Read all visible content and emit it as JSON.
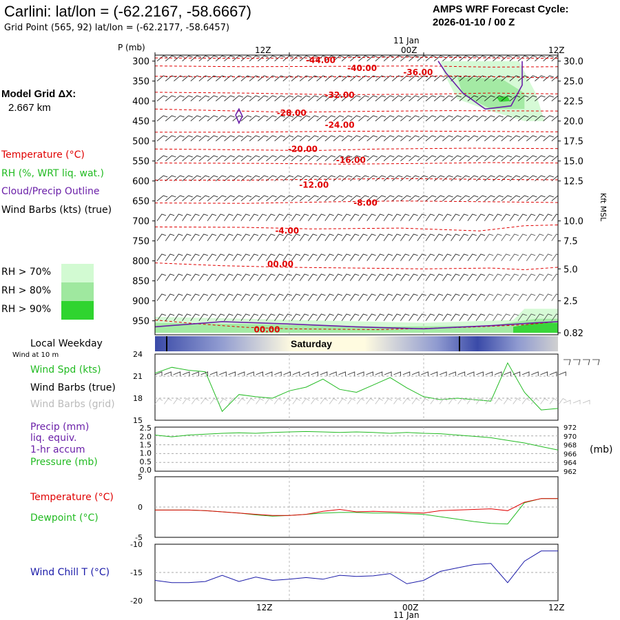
{
  "header": {
    "title": "Carlini: lat/lon = (-62.2167, -58.6667)",
    "grid_point": "Grid Point (565, 92) lat/lon = (-62.2177, -58.6457)",
    "cycle_line1": "AMPS WRF Forecast Cycle:",
    "cycle_line2": "2026-01-10 / 00  Z",
    "model_grid_label": "Model Grid ΔX:",
    "model_grid_value": "2.667 km"
  },
  "legend": {
    "temperature": "Temperature (°C)",
    "rh": "RH (%, WRT liq. wat.)",
    "cloud": "Cloud/Precip Outline",
    "wind": "Wind Barbs (kts) (true)",
    "rh70": "RH > 70%",
    "rh80": "RH > 80%",
    "rh90": "RH > 90%",
    "colors": {
      "rh70": "#d2fad2",
      "rh80": "#9fe89f",
      "rh90": "#2fd42f",
      "temperature": "#e00000",
      "cloud": "#6a1fa8",
      "rh_text": "#22bb22"
    }
  },
  "time_axis": {
    "top_day_label": "11 Jan",
    "top_ticks": [
      "12Z",
      "00Z",
      "12Z"
    ],
    "bottom_ticks": [
      "12Z",
      "00Z",
      "12Z"
    ],
    "bottom_day_label": "11 Jan"
  },
  "weekday_bar": {
    "label": "Local Weekday",
    "day": "Saturday"
  },
  "panel_labels": {
    "wind_at": "Wind at 10 m",
    "wind_spd": "Wind Spd (kts)",
    "wind_barbs_true": "Wind Barbs (true)",
    "wind_barbs_grid": "Wind Barbs (grid)",
    "precip1": "Precip (mm)",
    "precip2": "liq. equiv.",
    "precip3": "1-hr accum",
    "pressure": "Pressure (mb)",
    "pressure_unit": "(mb)",
    "temperature": "Temperature (°C)",
    "dewpoint": "Dewpoint (°C)",
    "windchill": "Wind Chill T (°C)"
  },
  "chart_data": [
    {
      "type": "heatmap",
      "name": "time-height cross section",
      "x_hours": [
        0,
        3,
        6,
        9,
        12,
        15,
        18,
        21,
        24,
        27,
        30,
        33,
        36
      ],
      "y_pressure_mb": [
        950,
        900,
        850,
        800,
        750,
        700,
        650,
        600,
        550,
        500,
        450,
        400,
        350,
        300
      ],
      "y_left_label": "P (mb)",
      "y_right_label": "Kft MSL",
      "y_right_ticks": [
        {
          "p": 300,
          "label": "30.0"
        },
        {
          "p": 350,
          "label": "25.0"
        },
        {
          "p": 400,
          "label": "22.5"
        },
        {
          "p": 450,
          "label": "20.0"
        },
        {
          "p": 500,
          "label": "17.5"
        },
        {
          "p": 550,
          "label": "15.0"
        },
        {
          "p": 600,
          "label": "12.5"
        },
        {
          "p": 700,
          "label": "10.0"
        },
        {
          "p": 750,
          "label": "7.5"
        },
        {
          "p": 820,
          "label": "5.0"
        },
        {
          "p": 900,
          "label": "2.5"
        },
        {
          "p": 980,
          "label": "0.82"
        }
      ],
      "temperature_contours": [
        {
          "value": -44,
          "label": "-44.00",
          "points": [
            [
              0,
              292
            ],
            [
              8,
              293
            ],
            [
              14,
              292
            ],
            [
              22,
              290
            ],
            [
              30,
              292
            ],
            [
              36,
              293
            ]
          ],
          "label_at": [
            14.8,
            298
          ]
        },
        {
          "value": -40,
          "label": "-40.00",
          "points": [
            [
              0,
              312
            ],
            [
              8,
              314
            ],
            [
              17,
              313
            ],
            [
              24,
              312
            ],
            [
              30,
              315
            ],
            [
              36,
              314
            ]
          ],
          "label_at": [
            18.5,
            318
          ]
        },
        {
          "value": -36,
          "label": "-36.00",
          "points": [
            [
              0,
              338
            ],
            [
              10,
              340
            ],
            [
              20,
              339
            ],
            [
              26,
              337
            ],
            [
              32,
              340
            ],
            [
              36,
              342
            ]
          ],
          "label_at": [
            23.5,
            328
          ]
        },
        {
          "value": -32,
          "label": "-32.00",
          "points": [
            [
              0,
              378
            ],
            [
              8,
              380
            ],
            [
              16,
              384
            ],
            [
              24,
              383
            ],
            [
              30,
              380
            ],
            [
              36,
              382
            ]
          ],
          "label_at": [
            16.5,
            385
          ]
        },
        {
          "value": -28,
          "label": "-28.00",
          "points": [
            [
              0,
              420
            ],
            [
              6,
              424
            ],
            [
              12,
              428
            ],
            [
              18,
              426
            ],
            [
              26,
              424
            ],
            [
              36,
              425
            ]
          ],
          "label_at": [
            12.2,
            430
          ]
        },
        {
          "value": -24,
          "label": "-24.00",
          "points": [
            [
              0,
              478
            ],
            [
              8,
              478
            ],
            [
              15,
              476
            ],
            [
              22,
              475
            ],
            [
              30,
              476
            ],
            [
              36,
              477
            ]
          ],
          "label_at": [
            16.5,
            460
          ]
        },
        {
          "value": -20,
          "label": "-20.00",
          "points": [
            [
              0,
              520
            ],
            [
              8,
              522
            ],
            [
              14,
              524
            ],
            [
              20,
              520
            ],
            [
              28,
              518
            ],
            [
              36,
              519
            ]
          ],
          "label_at": [
            13.2,
            520
          ]
        },
        {
          "value": -16,
          "label": "-16.00",
          "points": [
            [
              0,
              555
            ],
            [
              10,
              556
            ],
            [
              17,
              558
            ],
            [
              24,
              556
            ],
            [
              30,
              554
            ],
            [
              36,
              555
            ]
          ],
          "label_at": [
            17.5,
            548
          ]
        },
        {
          "value": -12,
          "label": "-12.00",
          "points": [
            [
              0,
              598
            ],
            [
              8,
              598
            ],
            [
              14,
              596
            ],
            [
              22,
              594
            ],
            [
              30,
              596
            ],
            [
              36,
              597
            ]
          ],
          "label_at": [
            14.2,
            610
          ]
        },
        {
          "value": -8,
          "label": "-8.00",
          "points": [
            [
              0,
              655
            ],
            [
              8,
              656
            ],
            [
              16,
              652
            ],
            [
              22,
              650
            ],
            [
              30,
              652
            ],
            [
              36,
              654
            ]
          ],
          "label_at": [
            18.8,
            655
          ]
        },
        {
          "value": -4,
          "label": "-4.00",
          "points": [
            [
              0,
              715
            ],
            [
              8,
              716
            ],
            [
              14,
              720
            ],
            [
              22,
              718
            ],
            [
              29,
              725
            ],
            [
              33,
              712
            ],
            [
              36,
              710
            ]
          ],
          "label_at": [
            11.8,
            725
          ]
        },
        {
          "value": 0,
          "label": "00.00",
          "points": [
            [
              0,
              805
            ],
            [
              6,
              812
            ],
            [
              12,
              816
            ],
            [
              18,
              818
            ],
            [
              24,
              820
            ],
            [
              30,
              818
            ],
            [
              33,
              822
            ],
            [
              36,
              816
            ]
          ],
          "label_at": [
            11.2,
            808
          ]
        },
        {
          "value": 0,
          "label": "00.00",
          "points": [
            [
              0,
              948
            ],
            [
              4,
              958
            ],
            [
              8,
              966
            ],
            [
              12,
              970
            ],
            [
              20,
              972
            ],
            [
              28,
              966
            ],
            [
              33,
              960
            ],
            [
              36,
              952
            ]
          ],
          "label_at": [
            10.0,
            972
          ]
        }
      ],
      "cloud_outlines": [
        {
          "points": [
            [
              7.2,
              435
            ],
            [
              7.5,
              420
            ],
            [
              7.8,
              438
            ],
            [
              7.5,
              455
            ],
            [
              7.2,
              435
            ]
          ]
        },
        {
          "points": [
            [
              25.3,
              300
            ],
            [
              26,
              330
            ],
            [
              27.5,
              380
            ],
            [
              29.5,
              420
            ],
            [
              31.8,
              412
            ],
            [
              32.8,
              360
            ],
            [
              32.8,
              300
            ]
          ]
        },
        {
          "points": [
            [
              0,
              965
            ],
            [
              6,
              952
            ],
            [
              12,
              958
            ],
            [
              18,
              965
            ],
            [
              24,
              970
            ],
            [
              30,
              962
            ],
            [
              34,
              955
            ],
            [
              36,
              952
            ]
          ]
        }
      ],
      "rh_regions": [
        {
          "level": 70,
          "points": [
            [
              25.5,
              300
            ],
            [
              32.5,
              300
            ],
            [
              34,
              380
            ],
            [
              34.8,
              450
            ],
            [
              33,
              450
            ],
            [
              30,
              425
            ],
            [
              27,
              395
            ],
            [
              25.8,
              330
            ]
          ]
        },
        {
          "level": 80,
          "points": [
            [
              27,
              340
            ],
            [
              31,
              345
            ],
            [
              33,
              380
            ],
            [
              33,
              420
            ],
            [
              30,
              420
            ],
            [
              27.5,
              385
            ]
          ]
        },
        {
          "level": 90,
          "points": [
            [
              30.5,
              390
            ],
            [
              31.5,
              388
            ],
            [
              31.7,
              400
            ],
            [
              30.8,
              402
            ]
          ]
        },
        {
          "level": 70,
          "points": [
            [
              0,
              940
            ],
            [
              8,
              945
            ],
            [
              16,
              950
            ],
            [
              24,
              955
            ],
            [
              32,
              948
            ],
            [
              33,
              920
            ],
            [
              36,
              920
            ],
            [
              36,
              980
            ],
            [
              0,
              980
            ]
          ]
        },
        {
          "level": 80,
          "points": [
            [
              0,
              955
            ],
            [
              8,
              958
            ],
            [
              20,
              965
            ],
            [
              30,
              962
            ],
            [
              34,
              945
            ],
            [
              36,
              945
            ],
            [
              36,
              980
            ],
            [
              0,
              980
            ]
          ]
        },
        {
          "level": 90,
          "points": [
            [
              32,
              965
            ],
            [
              34,
              955
            ],
            [
              36,
              955
            ],
            [
              36,
              980
            ],
            [
              32,
              980
            ]
          ]
        }
      ]
    },
    {
      "type": "line",
      "name": "10 m wind speed",
      "ylabel": "Wind Spd (kts)",
      "ylim": [
        15,
        24
      ],
      "yticks": [
        15,
        18,
        21,
        24
      ],
      "x": [
        0,
        1.5,
        3,
        4.5,
        6,
        7.5,
        9,
        10.5,
        12,
        13.5,
        15,
        16.5,
        18,
        19.5,
        21,
        22.5,
        24,
        25.5,
        27,
        28.5,
        30,
        31.5,
        33,
        34.5,
        36
      ],
      "values": [
        21.4,
        22.2,
        21.8,
        21.6,
        16.2,
        18.5,
        18.2,
        18.0,
        19.0,
        19.5,
        20.6,
        19.2,
        18.8,
        19.8,
        20.8,
        19.4,
        18.2,
        17.8,
        18.0,
        17.8,
        17.6,
        22.8,
        18.8,
        16.4,
        16.6
      ]
    },
    {
      "type": "line",
      "name": "surface pressure",
      "ylabel": "Pressure (mb)",
      "ylim": [
        962,
        972
      ],
      "yticks_left": [
        "0.0",
        "0.5",
        "1.0",
        "1.5",
        "2.0",
        "2.5"
      ],
      "yticks_right": [
        962,
        964,
        966,
        968,
        970,
        972
      ],
      "x": [
        0,
        1.5,
        3,
        4.5,
        6,
        7.5,
        9,
        10.5,
        12,
        13.5,
        15,
        16.5,
        18,
        19.5,
        21,
        22.5,
        24,
        25.5,
        27,
        28.5,
        30,
        31.5,
        33,
        34.5,
        36
      ],
      "values": [
        970.2,
        969.8,
        970.2,
        970.4,
        970.6,
        970.7,
        970.6,
        970.8,
        970.9,
        971.0,
        970.9,
        970.8,
        970.9,
        970.8,
        970.6,
        970.8,
        970.6,
        970.5,
        970.2,
        969.9,
        969.6,
        969.0,
        968.4,
        967.6,
        966.8
      ]
    },
    {
      "type": "line",
      "name": "temperature and dewpoint",
      "ylim": [
        -5,
        5
      ],
      "yticks": [
        -5,
        0,
        5
      ],
      "x": [
        0,
        1.5,
        3,
        4.5,
        6,
        7.5,
        9,
        10.5,
        12,
        13.5,
        15,
        16.5,
        18,
        19.5,
        21,
        22.5,
        24,
        25.5,
        27,
        28.5,
        30,
        31.5,
        33,
        34.5,
        36
      ],
      "series": [
        {
          "name": "Temperature (°C)",
          "color": "#e00000",
          "values": [
            -0.5,
            -0.5,
            -0.5,
            -0.6,
            -0.8,
            -1.0,
            -1.2,
            -1.4,
            -1.4,
            -1.2,
            -0.7,
            -0.4,
            -0.8,
            -0.7,
            -0.8,
            -0.9,
            -1.0,
            -0.6,
            -0.5,
            -0.4,
            -0.3,
            -0.6,
            0.8,
            1.4,
            1.4
          ]
        },
        {
          "name": "Dewpoint (°C)",
          "color": "#22bb22",
          "values": [
            -0.5,
            -0.5,
            -0.5,
            -0.6,
            -0.8,
            -1.0,
            -1.3,
            -1.5,
            -1.4,
            -1.2,
            -1.0,
            -0.9,
            -0.9,
            -1.0,
            -1.0,
            -1.1,
            -1.2,
            -1.6,
            -2.0,
            -2.4,
            -2.7,
            -2.8,
            0.7,
            1.4,
            1.4
          ]
        }
      ]
    },
    {
      "type": "line",
      "name": "wind chill",
      "ylabel": "Wind Chill T (°C)",
      "ylim": [
        -20,
        -10
      ],
      "yticks": [
        -20,
        -15,
        -10
      ],
      "x": [
        0,
        1.5,
        3,
        4.5,
        6,
        7.5,
        9,
        10.5,
        12,
        13.5,
        15,
        16.5,
        18,
        19.5,
        21,
        22.5,
        24,
        25.5,
        27,
        28.5,
        30,
        31.5,
        33,
        34.5,
        36
      ],
      "values": [
        -16.4,
        -16.8,
        -16.8,
        -16.6,
        -15.5,
        -16.6,
        -15.8,
        -16.4,
        -16.2,
        -15.9,
        -16.2,
        -15.5,
        -15.7,
        -15.6,
        -15.2,
        -17.0,
        -16.4,
        -14.8,
        -14.2,
        -13.6,
        -13.4,
        -16.8,
        -13.0,
        -11.2,
        -11.2
      ]
    }
  ]
}
